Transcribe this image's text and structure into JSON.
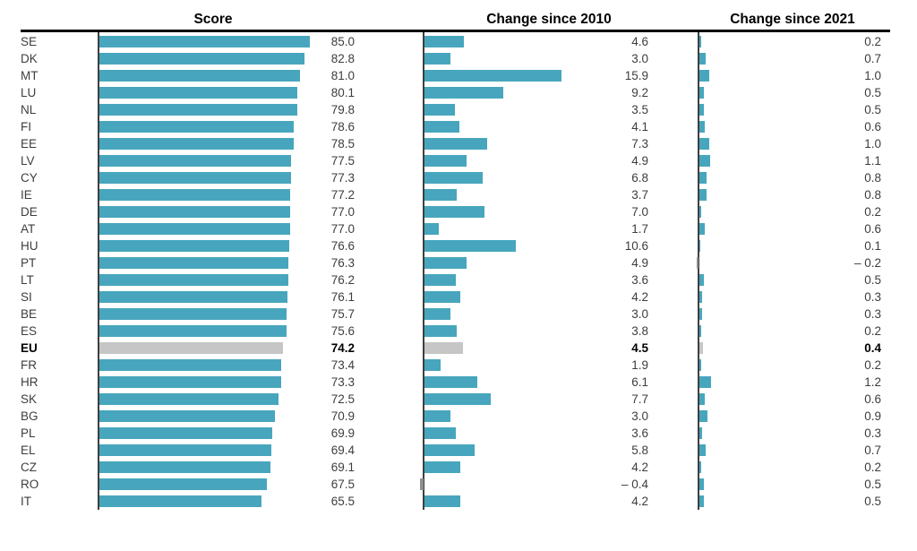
{
  "header": {
    "col_score": "Score",
    "col_change_2010": "Change since 2010",
    "col_change_2021": "Change since 2021"
  },
  "colors": {
    "bar_teal": "#47a6bd",
    "bar_highlight_gray": "#c6c6c6",
    "bar_negative_gray": "#8f8f8f",
    "axis_line": "#3f3f3f",
    "header_rule": "#000000",
    "text": "#3d3d3d"
  },
  "chart_data": {
    "type": "bar",
    "orientation": "horizontal",
    "title": "",
    "columns": [
      "Score",
      "Change since 2010",
      "Change since 2021"
    ],
    "highlight_category": "EU",
    "negative_value_prefix": "– ",
    "categories": [
      "SE",
      "DK",
      "MT",
      "LU",
      "NL",
      "FI",
      "EE",
      "LV",
      "CY",
      "IE",
      "DE",
      "AT",
      "HU",
      "PT",
      "LT",
      "SI",
      "BE",
      "ES",
      "EU",
      "FR",
      "HR",
      "SK",
      "BG",
      "PL",
      "EL",
      "CZ",
      "RO",
      "IT"
    ],
    "series": [
      {
        "name": "Score",
        "values": [
          85.0,
          82.8,
          81.0,
          80.1,
          79.8,
          78.6,
          78.5,
          77.5,
          77.3,
          77.2,
          77.0,
          77.0,
          76.6,
          76.3,
          76.2,
          76.1,
          75.7,
          75.6,
          74.2,
          73.4,
          73.3,
          72.5,
          70.9,
          69.9,
          69.4,
          69.1,
          67.5,
          65.5
        ]
      },
      {
        "name": "Change since 2010",
        "values": [
          4.6,
          3.0,
          15.9,
          9.2,
          3.5,
          4.1,
          7.3,
          4.9,
          6.8,
          3.7,
          7.0,
          1.7,
          10.6,
          4.9,
          3.6,
          4.2,
          3.0,
          3.8,
          4.5,
          1.9,
          6.1,
          7.7,
          3.0,
          3.6,
          5.8,
          4.2,
          -0.4,
          4.2
        ]
      },
      {
        "name": "Change since 2021",
        "values": [
          0.2,
          0.7,
          1.0,
          0.5,
          0.5,
          0.6,
          1.0,
          1.1,
          0.8,
          0.8,
          0.2,
          0.6,
          0.1,
          -0.2,
          0.5,
          0.3,
          0.3,
          0.2,
          0.4,
          0.2,
          1.2,
          0.6,
          0.9,
          0.3,
          0.7,
          0.2,
          0.5,
          0.5
        ]
      }
    ]
  }
}
